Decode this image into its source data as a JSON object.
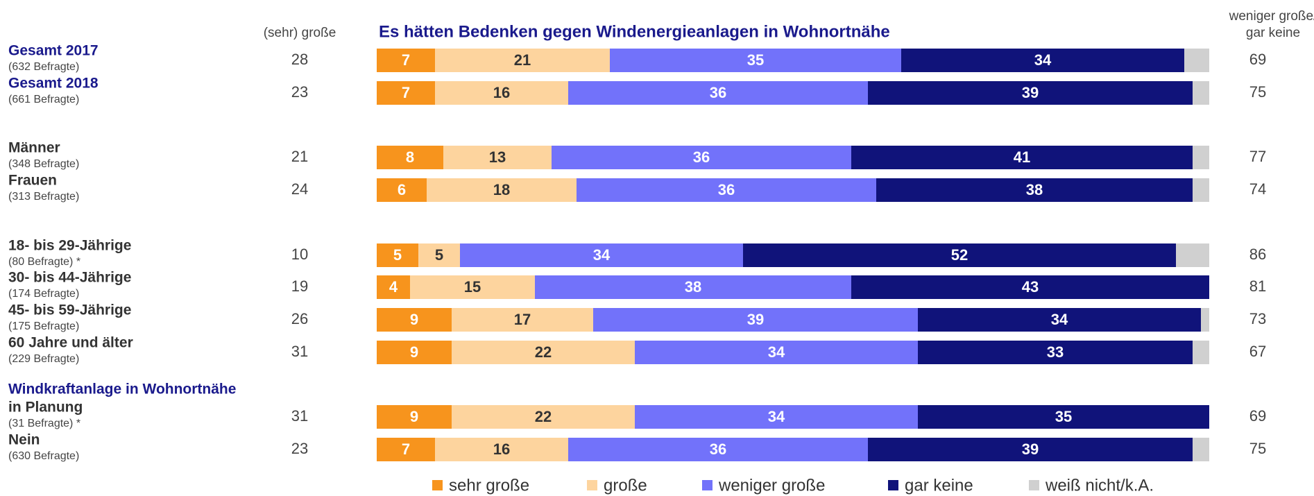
{
  "chart_data": {
    "type": "stacked-barh",
    "title": "Es hätten Bedenken gegen Windenergieanlagen in Wohnortnähe",
    "left_header": "(sehr) große",
    "right_header": [
      "weniger große/",
      "gar keine"
    ],
    "group_title": "Windkraftanlage in Wohnortnähe",
    "categories": [
      "Gesamt 2017",
      "Gesamt 2018",
      "Männer",
      "Frauen",
      "18- bis 29-Jährige",
      "30- bis 44-Jährige",
      "45- bis 59-Jährige",
      "60 Jahre und älter",
      "in Planung",
      "Nein"
    ],
    "sublabels": [
      "(632 Befragte)",
      "(661 Befragte)",
      "(348 Befragte)",
      "(313 Befragte)",
      "(80 Befragte) *",
      "(174 Befragte)",
      "(175 Befragte)",
      "(229 Befragte)",
      "(31 Befragte) *",
      "(630 Befragte)"
    ],
    "highlight_categories": [
      0,
      1
    ],
    "left_values": [
      28,
      23,
      21,
      24,
      10,
      19,
      26,
      31,
      31,
      23
    ],
    "right_values": [
      69,
      75,
      77,
      74,
      86,
      81,
      73,
      67,
      69,
      75
    ],
    "xlim": [
      0,
      100
    ],
    "series": [
      {
        "name": "sehr große",
        "color": "#f7941d",
        "label_color": "#ffffff",
        "show_labels": true,
        "values": [
          7,
          7,
          8,
          6,
          5,
          4,
          9,
          9,
          9,
          7
        ]
      },
      {
        "name": "große",
        "color": "#fdd49e",
        "label_color": "#333333",
        "show_labels": true,
        "values": [
          21,
          16,
          13,
          18,
          5,
          15,
          17,
          22,
          22,
          16
        ]
      },
      {
        "name": "weniger große",
        "color": "#7272fa",
        "label_color": "#ffffff",
        "show_labels": true,
        "values": [
          35,
          36,
          36,
          36,
          34,
          38,
          39,
          34,
          34,
          36
        ]
      },
      {
        "name": "gar keine",
        "color": "#10137a",
        "label_color": "#ffffff",
        "show_labels": true,
        "values": [
          34,
          39,
          41,
          38,
          52,
          43,
          34,
          33,
          35,
          39
        ]
      },
      {
        "name": "weiß nicht/k.A.",
        "color": "#d0d0d0",
        "label_color": "#333333",
        "show_labels": false,
        "values": [
          3,
          2,
          2,
          2,
          4,
          0,
          1,
          2,
          0,
          2
        ]
      }
    ]
  }
}
